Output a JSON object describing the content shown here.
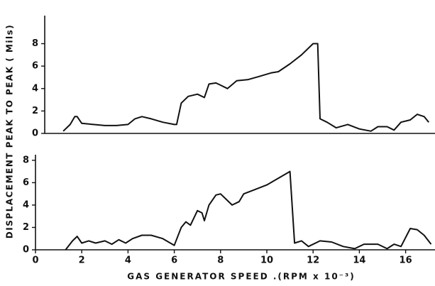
{
  "chart_data": [
    {
      "type": "line",
      "ylabel": "DISPLACEMENT PEAK TO PEAK ( Mils)",
      "xlim": [
        0.4,
        17.3
      ],
      "ylim": [
        0,
        10.5
      ],
      "yticks": [
        0,
        2,
        4,
        6,
        8
      ],
      "series": [
        {
          "color": "#111111",
          "x": [
            1.2,
            1.5,
            1.7,
            1.8,
            2.0,
            2.5,
            3,
            3.5,
            4,
            4.3,
            4.6,
            5,
            5.5,
            6.0,
            6.1,
            6.3,
            6.6,
            7.0,
            7.3,
            7.5,
            7.8,
            8.0,
            8.3,
            8.7,
            9.2,
            9.7,
            10.2,
            10.5,
            11,
            11.5,
            12.0,
            12.2,
            12.3,
            12.6,
            13,
            13.5,
            14,
            14.5,
            14.8,
            15.2,
            15.5,
            15.8,
            16.2,
            16.5,
            16.8,
            17.0
          ],
          "values": [
            0.2,
            0.8,
            1.5,
            1.5,
            0.9,
            0.8,
            0.7,
            0.7,
            0.8,
            1.3,
            1.5,
            1.3,
            1.0,
            0.8,
            0.8,
            2.7,
            3.3,
            3.5,
            3.2,
            4.4,
            4.5,
            4.3,
            4.0,
            4.7,
            4.8,
            5.1,
            5.4,
            5.5,
            6.2,
            7.0,
            8.0,
            8.0,
            1.3,
            1.0,
            0.5,
            0.8,
            0.4,
            0.2,
            0.6,
            0.6,
            0.3,
            1.0,
            1.2,
            1.7,
            1.5,
            1.0
          ]
        }
      ]
    },
    {
      "type": "line",
      "xlabel": "GAS GENERATOR SPEED .(RPM x 10⁻³)",
      "xlim": [
        0,
        17.3
      ],
      "xticks": [
        0,
        2,
        4,
        6,
        8,
        10,
        12,
        14,
        16
      ],
      "ylim": [
        0,
        8.5
      ],
      "yticks": [
        0,
        2,
        4,
        6,
        8
      ],
      "series": [
        {
          "color": "#111111",
          "x": [
            1.3,
            1.6,
            1.8,
            2.0,
            2.3,
            2.6,
            3,
            3.3,
            3.6,
            3.9,
            4.2,
            4.6,
            5,
            5.5,
            6.0,
            6.3,
            6.5,
            6.7,
            7.0,
            7.2,
            7.3,
            7.5,
            7.8,
            8.0,
            8.3,
            8.5,
            8.8,
            9.0,
            9.5,
            10,
            10.5,
            11.0,
            11.2,
            11.5,
            11.8,
            12.3,
            12.8,
            13.3,
            13.8,
            14.2,
            14.8,
            15.2,
            15.5,
            15.8,
            16.2,
            16.5,
            16.8,
            17.1
          ],
          "values": [
            0,
            0.8,
            1.2,
            0.6,
            0.8,
            0.6,
            0.8,
            0.5,
            0.9,
            0.6,
            1.0,
            1.3,
            1.3,
            1.0,
            0.4,
            2.0,
            2.5,
            2.2,
            3.5,
            3.3,
            2.6,
            4.0,
            4.9,
            5.0,
            4.4,
            4.0,
            4.3,
            5.0,
            5.4,
            5.8,
            6.4,
            7.0,
            0.6,
            0.8,
            0.3,
            0.8,
            0.7,
            0.3,
            0.1,
            0.5,
            0.5,
            0.1,
            0.5,
            0.3,
            1.9,
            1.8,
            1.3,
            0.5
          ]
        }
      ]
    }
  ]
}
